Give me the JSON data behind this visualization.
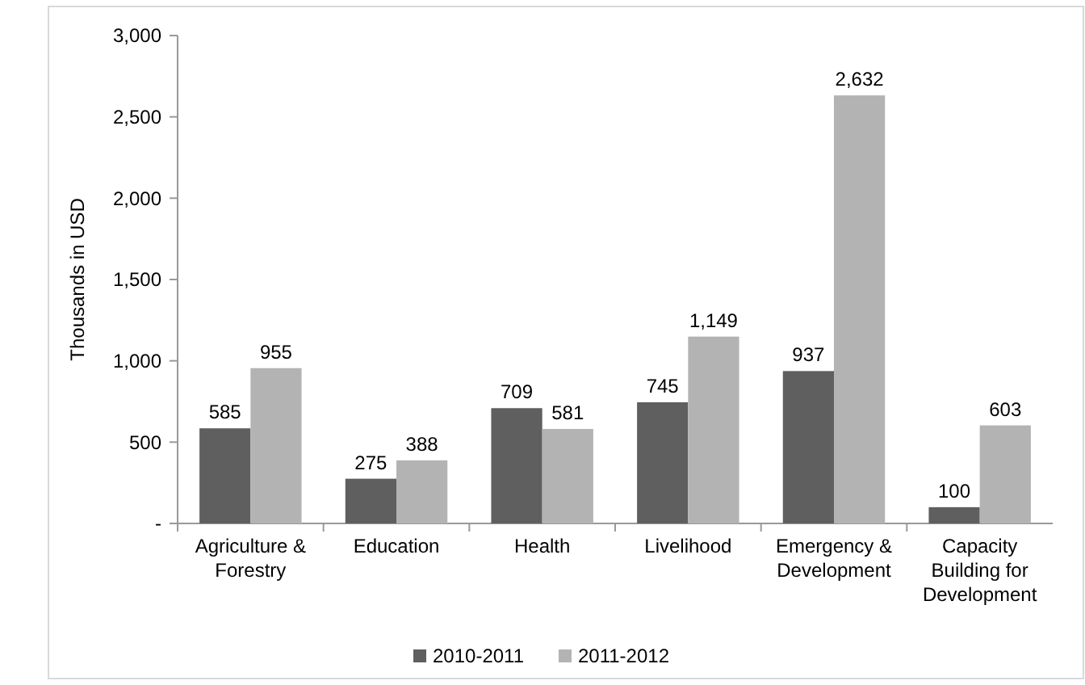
{
  "chart_data": {
    "type": "bar",
    "ylabel": "Thousands in USD",
    "categories": [
      "Agriculture & Forestry",
      "Education",
      "Health",
      "Livelihood",
      "Emergency & Development",
      "Capacity Building for Development"
    ],
    "series": [
      {
        "name": "2010-2011",
        "color": "#5f5f5f",
        "values": [
          585,
          275,
          709,
          745,
          937,
          100
        ],
        "value_labels": [
          "585",
          "275",
          "709",
          "745",
          "937",
          "100"
        ]
      },
      {
        "name": "2011-2012",
        "color": "#b3b3b3",
        "values": [
          955,
          388,
          581,
          1149,
          2632,
          603
        ],
        "value_labels": [
          "955",
          "388",
          "581",
          "1,149",
          "2,632",
          "603"
        ]
      }
    ],
    "ylim": [
      0,
      3000
    ],
    "yticks": [
      {
        "value": 0,
        "label": "-"
      },
      {
        "value": 500,
        "label": "500"
      },
      {
        "value": 1000,
        "label": "1,000"
      },
      {
        "value": 1500,
        "label": "1,500"
      },
      {
        "value": 2000,
        "label": "2,000"
      },
      {
        "value": 2500,
        "label": "2,500"
      },
      {
        "value": 3000,
        "label": "3,000"
      }
    ],
    "grid": false,
    "legend": "bottom"
  }
}
